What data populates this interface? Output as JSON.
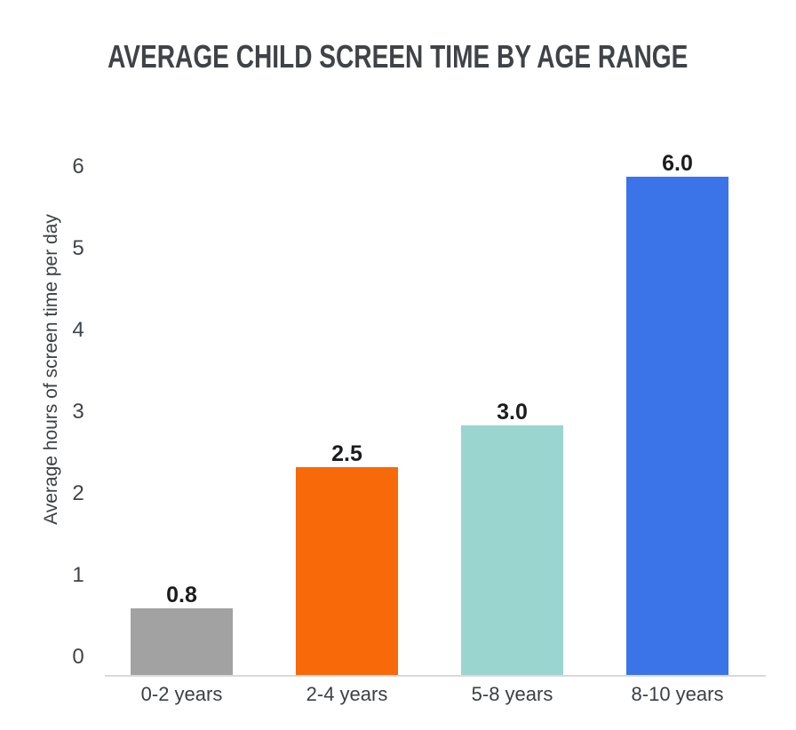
{
  "title": "AVERAGE CHILD SCREEN TIME BY AGE RANGE",
  "chart_data": {
    "type": "bar",
    "title": "AVERAGE CHILD SCREEN TIME BY AGE RANGE",
    "categories": [
      "0-2 years",
      "2-4 years",
      "5-8 years",
      "8-10 years"
    ],
    "values": [
      0.8,
      2.5,
      3.0,
      6.0
    ],
    "value_labels": [
      "0.8",
      "2.5",
      "3.0",
      "6.0"
    ],
    "bar_colors": [
      "#a2a2a2",
      "#f8690a",
      "#9ad5cf",
      "#3a74e8"
    ],
    "xlabel": "",
    "ylabel": "Average hours of screen time per day",
    "ylim": [
      0,
      6
    ],
    "yticks": [
      0,
      1,
      2,
      3,
      4,
      5,
      6
    ],
    "grid": false,
    "legend": "none",
    "background": "#ffffff"
  },
  "style": {
    "title_color": "#3f4347",
    "axis_text_color": "#3c4043",
    "value_label_color": "#1b1c1e",
    "axis_line_color": "#d9d9d9"
  }
}
